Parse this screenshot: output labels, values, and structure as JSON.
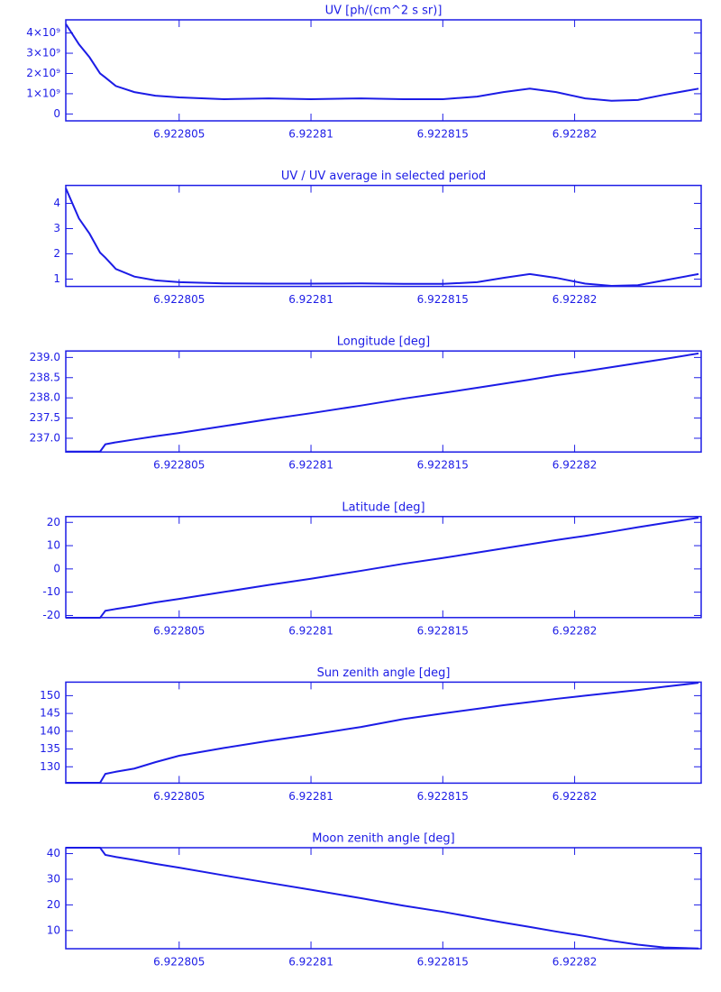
{
  "chart_data": [
    {
      "type": "line",
      "title": "UV [ph/(cm^2 s sr)]",
      "x": [
        6.9228007,
        6.9228012,
        6.9228016,
        6.922802,
        6.9228022,
        6.9228026,
        6.9228033,
        6.9228041,
        6.922805,
        6.9228067,
        6.9228084,
        6.92281,
        6.9228119,
        6.9228135,
        6.922815,
        6.9228163,
        6.9228173,
        6.9228183,
        6.9228193,
        6.9228204,
        6.9228214,
        6.9228224,
        6.9228234,
        6.9228247
      ],
      "values": [
        4450000000,
        3440000000,
        2800000000,
        2000000000,
        1800000000,
        1380000000,
        1080000000,
        900000000,
        820000000,
        730000000,
        770000000,
        730000000,
        770000000,
        730000000,
        730000000,
        860000000,
        1080000000,
        1250000000,
        1080000000,
        770000000,
        650000000,
        690000000,
        950000000,
        1250000000
      ],
      "color": "#1c1ce6",
      "xlim": [
        6.9228007,
        6.9228248
      ],
      "xticks": [
        6.922805,
        6.92281,
        6.922815,
        6.92282
      ],
      "ylim": [
        -340000000,
        4650000000
      ],
      "yticks": [
        {
          "value": 0,
          "label": "0"
        },
        {
          "value": 1000000000,
          "label": "1×10⁹"
        },
        {
          "value": 2000000000,
          "label": "2×10⁹"
        },
        {
          "value": 3000000000,
          "label": "3×10⁹"
        },
        {
          "value": 4000000000,
          "label": "4×10⁹"
        }
      ]
    },
    {
      "type": "line",
      "title": "UV / UV average in selected period",
      "x": [
        6.9228007,
        6.9228012,
        6.9228016,
        6.922802,
        6.9228022,
        6.9228026,
        6.9228033,
        6.9228041,
        6.922805,
        6.9228067,
        6.9228084,
        6.92281,
        6.9228119,
        6.9228135,
        6.922815,
        6.9228163,
        6.9228173,
        6.9228183,
        6.9228193,
        6.9228204,
        6.9228214,
        6.9228224,
        6.9228234,
        6.9228247
      ],
      "values": [
        4.6,
        3.4,
        2.8,
        2.05,
        1.85,
        1.4,
        1.1,
        0.95,
        0.88,
        0.83,
        0.82,
        0.82,
        0.83,
        0.81,
        0.81,
        0.88,
        1.05,
        1.2,
        1.05,
        0.82,
        0.73,
        0.76,
        0.95,
        1.2
      ],
      "color": "#1c1ce6",
      "xlim": [
        6.9228007,
        6.9228248
      ],
      "xticks": [
        6.922805,
        6.92281,
        6.922815,
        6.92282
      ],
      "ylim": [
        0.71,
        4.71
      ],
      "yticks": [
        1,
        2,
        3,
        4
      ]
    },
    {
      "type": "line",
      "title": "Longitude [deg]",
      "x": [
        6.9228007,
        6.9228012,
        6.9228016,
        6.922802,
        6.9228022,
        6.9228026,
        6.9228033,
        6.9228041,
        6.922805,
        6.9228067,
        6.9228084,
        6.92281,
        6.9228119,
        6.9228135,
        6.922815,
        6.9228163,
        6.9228173,
        6.9228183,
        6.9228193,
        6.9228204,
        6.9228214,
        6.9228224,
        6.9228234,
        6.9228247
      ],
      "values": [
        236.67,
        236.67,
        236.67,
        236.67,
        236.85,
        236.9,
        236.97,
        237.05,
        237.13,
        237.3,
        237.47,
        237.62,
        237.81,
        237.98,
        238.12,
        238.25,
        238.35,
        238.45,
        238.56,
        238.66,
        238.76,
        238.86,
        238.96,
        239.1
      ],
      "color": "#1c1ce6",
      "xlim": [
        6.9228007,
        6.9228248
      ],
      "xticks": [
        6.922805,
        6.92281,
        6.922815,
        6.92282
      ],
      "ylim": [
        236.66,
        239.16
      ],
      "yticks": [
        {
          "value": 237,
          "label": "237.0"
        },
        237.5,
        {
          "value": 238,
          "label": "238.0"
        },
        238.5,
        {
          "value": 239,
          "label": "239.0"
        }
      ]
    },
    {
      "type": "line",
      "title": "Latitude [deg]",
      "x": [
        6.9228007,
        6.9228012,
        6.9228016,
        6.922802,
        6.9228022,
        6.9228026,
        6.9228033,
        6.9228041,
        6.922805,
        6.9228067,
        6.9228084,
        6.92281,
        6.9228119,
        6.9228135,
        6.922815,
        6.9228163,
        6.9228173,
        6.9228183,
        6.9228193,
        6.9228204,
        6.9228214,
        6.9228224,
        6.9228234,
        6.9228247
      ],
      "values": [
        -21,
        -21,
        -21,
        -21,
        -18,
        -17.2,
        -16,
        -14.4,
        -12.9,
        -9.9,
        -6.9,
        -4.2,
        -0.8,
        2.2,
        4.7,
        7.0,
        8.8,
        10.6,
        12.4,
        14.2,
        16.0,
        17.9,
        19.7,
        22
      ],
      "color": "#1c1ce6",
      "xlim": [
        6.9228007,
        6.9228248
      ],
      "xticks": [
        6.922805,
        6.92281,
        6.922815,
        6.92282
      ],
      "ylim": [
        -20.9,
        22.5
      ],
      "yticks": [
        -20,
        -10,
        0,
        10,
        20
      ]
    },
    {
      "type": "line",
      "title": "Sun zenith angle [deg]",
      "x": [
        6.9228007,
        6.9228012,
        6.9228016,
        6.922802,
        6.9228022,
        6.9228026,
        6.9228033,
        6.9228041,
        6.922805,
        6.9228067,
        6.9228084,
        6.92281,
        6.9228119,
        6.9228135,
        6.922815,
        6.9228163,
        6.9228173,
        6.9228183,
        6.9228193,
        6.9228204,
        6.9228214,
        6.9228224,
        6.9228234,
        6.9228247
      ],
      "values": [
        125.5,
        125.5,
        125.5,
        125.5,
        128,
        128.6,
        129.5,
        131.3,
        133.1,
        135.3,
        137.3,
        139,
        141.2,
        143.4,
        145.0,
        146.3,
        147.3,
        148.2,
        149.1,
        150.0,
        150.8,
        151.6,
        152.5,
        153.6
      ],
      "color": "#1c1ce6",
      "xlim": [
        6.9228007,
        6.9228248
      ],
      "xticks": [
        6.922805,
        6.92281,
        6.922815,
        6.92282
      ],
      "ylim": [
        125.4,
        153.8
      ],
      "yticks": [
        130,
        135,
        140,
        145,
        150
      ]
    },
    {
      "type": "line",
      "title": "Moon zenith angle [deg]",
      "x": [
        6.9228007,
        6.9228012,
        6.9228016,
        6.922802,
        6.9228022,
        6.9228026,
        6.9228033,
        6.9228041,
        6.922805,
        6.9228067,
        6.9228084,
        6.92281,
        6.9228119,
        6.9228135,
        6.922815,
        6.9228163,
        6.9228173,
        6.9228183,
        6.9228193,
        6.9228204,
        6.9228214,
        6.9228224,
        6.9228234,
        6.9228247
      ],
      "values": [
        42.3,
        42.3,
        42.3,
        42.3,
        39.5,
        38.7,
        37.5,
        36,
        34.5,
        31.5,
        28.6,
        25.9,
        22.6,
        19.7,
        17.3,
        14.9,
        13.1,
        11.4,
        9.6,
        7.8,
        6.0,
        4.5,
        3.4,
        3.0
      ],
      "color": "#1c1ce6",
      "xlim": [
        6.9228007,
        6.9228248
      ],
      "xticks": [
        6.922805,
        6.92281,
        6.922815,
        6.92282
      ],
      "ylim": [
        2.9,
        42.3
      ],
      "yticks": [
        10,
        20,
        30,
        40
      ]
    }
  ]
}
